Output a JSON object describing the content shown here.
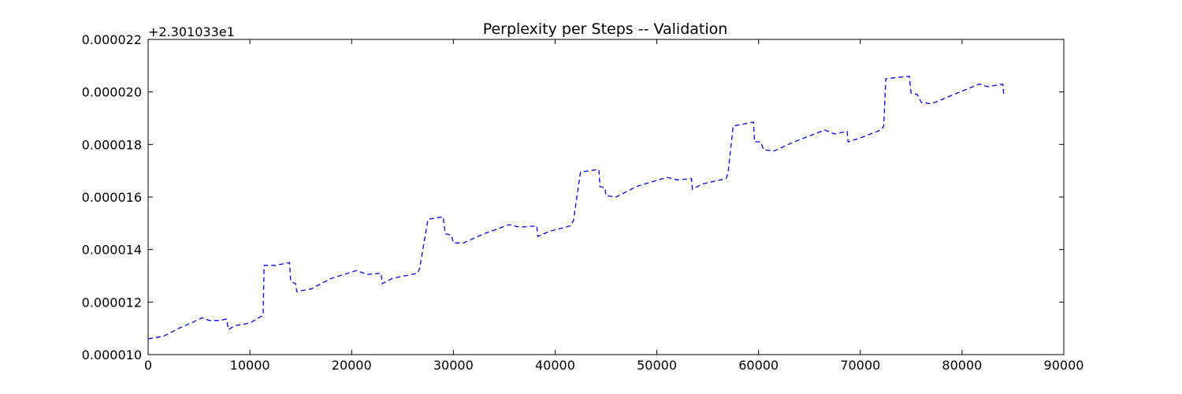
{
  "chart_data": {
    "type": "line",
    "title": "Perplexity per Steps -- Validation",
    "xlabel": "",
    "ylabel": "",
    "y_offset_label": "+2.301033e1",
    "xlim": [
      0,
      90000
    ],
    "ylim": [
      1e-05,
      2.2e-05
    ],
    "x_ticks": [
      0,
      10000,
      20000,
      30000,
      40000,
      50000,
      60000,
      70000,
      80000,
      90000
    ],
    "x_tick_labels": [
      "0",
      "10000",
      "20000",
      "30000",
      "40000",
      "50000",
      "60000",
      "70000",
      "80000",
      "90000"
    ],
    "y_ticks": [
      1e-05,
      1.2e-05,
      1.4e-05,
      1.6e-05,
      1.8e-05,
      2e-05,
      2.2e-05
    ],
    "y_tick_labels": [
      "0.000010",
      "0.000012",
      "0.000014",
      "0.000016",
      "0.000018",
      "0.000020",
      "0.000022"
    ],
    "grid": false,
    "series": [
      {
        "color": "#0000ff",
        "linestyle": "dashed",
        "x": [
          0,
          1500,
          3000,
          4500,
          5300,
          6000,
          7000,
          7700,
          7900,
          8500,
          10000,
          11300,
          11400,
          12500,
          13900,
          14000,
          14500,
          14600,
          16000,
          18000,
          20500,
          21500,
          22900,
          23000,
          24000,
          26500,
          26700,
          27500,
          29000,
          29200,
          29800,
          30000,
          31000,
          33000,
          35500,
          36500,
          38200,
          38300,
          39500,
          41500,
          41800,
          42500,
          44300,
          44400,
          44900,
          45000,
          46000,
          48000,
          51000,
          52000,
          53400,
          53500,
          54500,
          56800,
          57000,
          57500,
          59500,
          59600,
          60200,
          60500,
          61500,
          63500,
          66500,
          67500,
          68700,
          68800,
          70000,
          72000,
          72300,
          72500,
          74800,
          75000,
          75600,
          76000,
          77000,
          79500,
          81700,
          82500,
          84000,
          84100
        ],
        "y": [
          1.06e-05,
          1.07e-05,
          1.1e-05,
          1.125e-05,
          1.14e-05,
          1.13e-05,
          1.13e-05,
          1.135e-05,
          1.095e-05,
          1.11e-05,
          1.12e-05,
          1.15e-05,
          1.34e-05,
          1.34e-05,
          1.35e-05,
          1.28e-05,
          1.27e-05,
          1.24e-05,
          1.25e-05,
          1.29e-05,
          1.32e-05,
          1.305e-05,
          1.31e-05,
          1.27e-05,
          1.29e-05,
          1.31e-05,
          1.33e-05,
          1.515e-05,
          1.525e-05,
          1.46e-05,
          1.455e-05,
          1.425e-05,
          1.425e-05,
          1.46e-05,
          1.495e-05,
          1.485e-05,
          1.49e-05,
          1.45e-05,
          1.47e-05,
          1.49e-05,
          1.51e-05,
          1.695e-05,
          1.705e-05,
          1.64e-05,
          1.635e-05,
          1.605e-05,
          1.6e-05,
          1.64e-05,
          1.675e-05,
          1.665e-05,
          1.67e-05,
          1.63e-05,
          1.65e-05,
          1.67e-05,
          1.69e-05,
          1.87e-05,
          1.885e-05,
          1.81e-05,
          1.81e-05,
          1.78e-05,
          1.775e-05,
          1.81e-05,
          1.855e-05,
          1.84e-05,
          1.85e-05,
          1.81e-05,
          1.825e-05,
          1.855e-05,
          1.87e-05,
          2.05e-05,
          2.06e-05,
          1.995e-05,
          1.99e-05,
          1.96e-05,
          1.955e-05,
          1.995e-05,
          2.03e-05,
          2.02e-05,
          2.03e-05,
          1.99e-05
        ]
      }
    ]
  }
}
